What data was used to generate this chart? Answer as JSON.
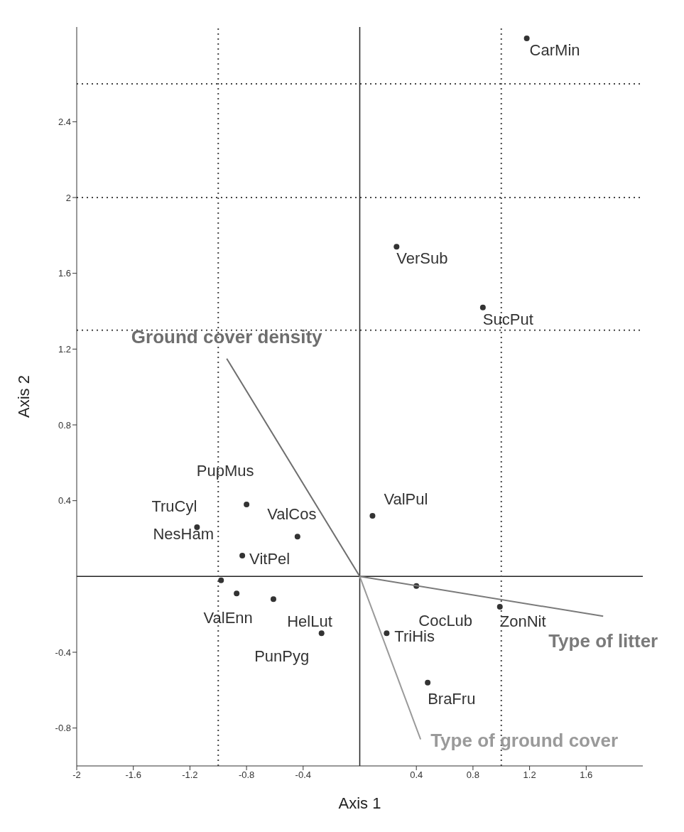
{
  "chart_data": {
    "type": "scatter",
    "xlabel": "Axis 1",
    "ylabel": "Axis 2",
    "xlim": [
      -2,
      2
    ],
    "ylim": [
      -1,
      2.9
    ],
    "xticks": [
      -2,
      -1.6,
      -1.2,
      -0.8,
      -0.4,
      0.4,
      0.8,
      1.2,
      1.6
    ],
    "yticks": [
      -0.8,
      -0.4,
      0.4,
      0.8,
      1.2,
      1.6,
      2,
      2.4
    ],
    "series": [
      {
        "type": "scatter",
        "color": "#333333",
        "marker": "circle",
        "x": [
          1.18,
          0.26,
          0.87,
          0.09,
          -0.8,
          -1.15,
          -0.44,
          -0.83,
          -0.98,
          -0.87,
          -0.61,
          -0.27,
          0.4,
          0.19,
          0.99,
          0.48
        ],
        "values": [
          2.84,
          1.74,
          1.42,
          0.32,
          0.38,
          0.26,
          0.21,
          0.11,
          -0.02,
          -0.09,
          -0.12,
          -0.3,
          -0.05,
          -0.3,
          -0.16,
          -0.56
        ]
      },
      {
        "type": "line",
        "name": "Ground cover density",
        "color": "#6e6e6e",
        "marker": "none",
        "x": [
          0,
          -0.94
        ],
        "values": [
          0,
          1.15
        ]
      },
      {
        "type": "line",
        "name": "Type of litter",
        "color": "#7a7a7a",
        "marker": "none",
        "x": [
          0,
          1.72
        ],
        "values": [
          0,
          -0.21
        ]
      },
      {
        "type": "line",
        "name": "Type of ground cover",
        "color": "#9a9a9a",
        "marker": "none",
        "x": [
          0,
          0.43
        ],
        "values": [
          0,
          -0.86
        ]
      }
    ],
    "ref_lines": [
      {
        "axis": "x",
        "value": 0,
        "color": "#222222",
        "line_style": "solid"
      },
      {
        "axis": "y",
        "value": 0,
        "color": "#222222",
        "line_style": "solid"
      },
      {
        "axis": "x",
        "value": -1,
        "color": "#444444",
        "line_style": "dotted"
      },
      {
        "axis": "x",
        "value": 1,
        "color": "#444444",
        "line_style": "dotted"
      },
      {
        "axis": "y",
        "value": 1.3,
        "color": "#444444",
        "line_style": "dotted"
      },
      {
        "axis": "y",
        "value": 2,
        "color": "#444444",
        "line_style": "dotted"
      },
      {
        "axis": "y",
        "value": 2.6,
        "color": "#444444",
        "line_style": "dotted"
      }
    ],
    "annotations": [
      {
        "text": "CarMin",
        "x": 1.18,
        "y": 2.84
      },
      {
        "text": "VerSub",
        "x": 0.26,
        "y": 1.74
      },
      {
        "text": "SucPut",
        "x": 0.87,
        "y": 1.42
      },
      {
        "text": "ValPul",
        "x": 0.09,
        "y": 0.32
      },
      {
        "text": "PupMus",
        "x": -0.8,
        "y": 0.38
      },
      {
        "text": "TruCyl",
        "x": -1.15,
        "y": 0.26
      },
      {
        "text": "ValCos",
        "x": -0.44,
        "y": 0.21
      },
      {
        "text": "VitPel",
        "x": -0.83,
        "y": 0.11
      },
      {
        "text": "NesHam",
        "x": -0.98,
        "y": -0.02
      },
      {
        "text": "ValEnn",
        "x": -0.87,
        "y": -0.09
      },
      {
        "text": "HelLut",
        "x": -0.61,
        "y": -0.12
      },
      {
        "text": "PunPyg",
        "x": -0.27,
        "y": -0.3
      },
      {
        "text": "CocLub",
        "x": 0.4,
        "y": -0.05
      },
      {
        "text": "TriHis",
        "x": 0.19,
        "y": -0.3
      },
      {
        "text": "ZonNit",
        "x": 0.99,
        "y": -0.16
      },
      {
        "text": "BraFru",
        "x": 0.48,
        "y": -0.56
      }
    ]
  }
}
